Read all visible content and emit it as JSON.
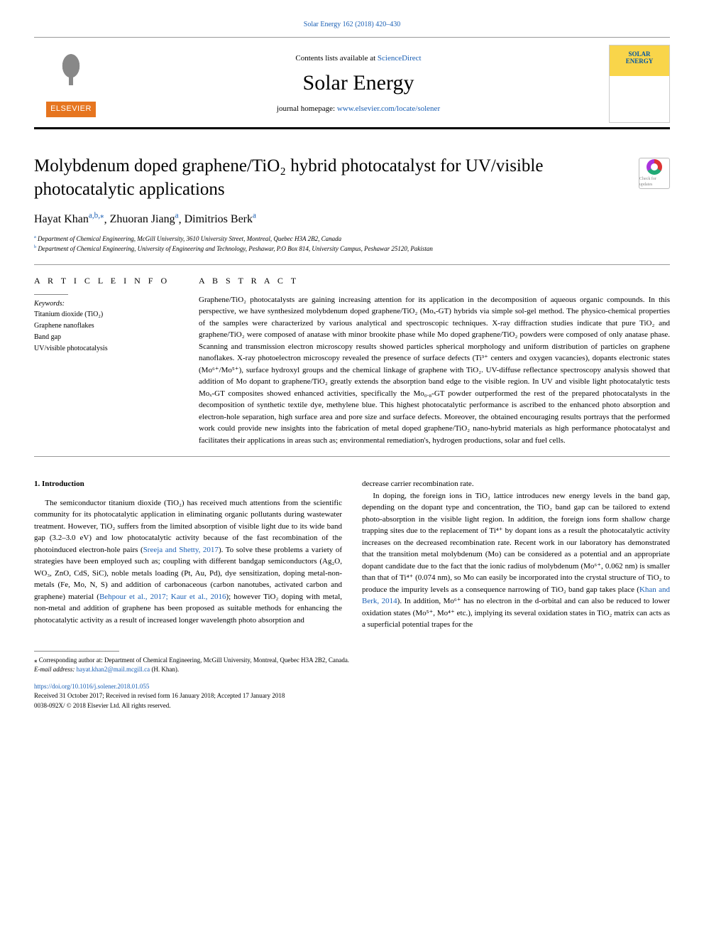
{
  "top_link": {
    "text": "Solar Energy 162 (2018) 420–430"
  },
  "header": {
    "contents_prefix": "Contents lists available at ",
    "contents_link": "ScienceDirect",
    "journal": "Solar Energy",
    "homepage_prefix": "journal homepage: ",
    "homepage_url": "www.elsevier.com/locate/solener",
    "elsevier": "ELSEVIER",
    "cover_line1": "SOLAR",
    "cover_line2": "ENERGY"
  },
  "article": {
    "title": "Molybdenum doped graphene/TiO₂ hybrid photocatalyst for UV/visible photocatalytic applications",
    "check_updates": "Check for updates",
    "authors_html": "Hayat Khan|a,b,*|, Zhuoran Jiang|a|, Dimitrios Berk|a|",
    "authors": [
      {
        "name": "Hayat Khan",
        "sup": "a,b,⁎"
      },
      {
        "name": "Zhuoran Jiang",
        "sup": "a"
      },
      {
        "name": "Dimitrios Berk",
        "sup": "a"
      }
    ],
    "affiliations": [
      {
        "sup": "a",
        "text": "Department of Chemical Engineering, McGill University, 3610 University Street, Montreal, Quebec H3A 2B2, Canada"
      },
      {
        "sup": "b",
        "text": "Department of Chemical Engineering, University of Engineering and Technology, Peshawar, P.O Box 814, University Campus, Peshawar 25120, Pakistan"
      }
    ]
  },
  "info": {
    "head_left": "A R T I C L E  I N F O",
    "head_right": "A B S T R A C T",
    "keywords_label": "Keywords:",
    "keywords": [
      "Titanium dioxide (TiO₂)",
      "Graphene nanoflakes",
      "Band gap",
      "UV/visible photocatalysis"
    ],
    "abstract": "Graphene/TiO₂ photocatalysts are gaining increasing attention for its application in the decomposition of aqueous organic compounds. In this perspective, we have synthesized molybdenum doped graphene/TiO₂ (Moₓ-GT) hybrids via simple sol-gel method. The physico-chemical properties of the samples were characterized by various analytical and spectroscopic techniques. X-ray diffraction studies indicate that pure TiO₂ and graphene/TiO₂ were composed of anatase with minor brookite phase while Mo doped graphene/TiO₂ powders were composed of only anatase phase. Scanning and transmission electron microscopy results showed particles spherical morphology and uniform distribution of particles on graphene nanoflakes. X-ray photoelectron microscopy revealed the presence of surface defects (Ti³⁺ centers and oxygen vacancies), dopants electronic states (Mo⁶⁺/Mo⁵⁺), surface hydroxyl groups and the chemical linkage of graphene with TiO₂. UV-diffuse reflectance spectroscopy analysis showed that addition of Mo dopant to graphene/TiO₂ greatly extends the absorption band edge to the visible region. In UV and visible light photocatalytic tests Moₓ-GT composites showed enhanced activities, specifically the Mo₀.₈-GT powder outperformed the rest of the prepared photocatalysts in the decomposition of synthetic textile dye, methylene blue. This highest photocatalytic performance is ascribed to the enhanced photo absorption and electron-hole separation, high surface area and pore size and surface defects. Moreover, the obtained encouraging results portrays that the performed work could provide new insights into the fabrication of metal doped graphene/TiO₂ nano-hybrid materials as high performance photocatalyst and facilitates their applications in areas such as; environmental remediation's, hydrogen productions, solar and fuel cells."
  },
  "body": {
    "intro_head": "1. Introduction",
    "col1_p1": "The semiconductor titanium dioxide (TiO₂) has received much attentions from the scientific community for its photocatalytic application in eliminating organic pollutants during wastewater treatment. However, TiO₂ suffers from the limited absorption of visible light due to its wide band gap (3.2–3.0 eV) and low photocatalytic activity because of the fast recombination of the photoinduced electron-hole pairs (",
    "col1_ref1": "Sreeja and Shetty, 2017",
    "col1_p1b": "). To solve these problems a variety of strategies have been employed such as; coupling with different bandgap semiconductors (Ag₂O, WO₃, ZnO, CdS, SiC), noble metals loading (Pt, Au, Pd), dye sensitization, doping metal-non-metals (Fe, Mo, N, S) and addition of carbonaceous (carbon nanotubes, activated carbon and graphene) material (",
    "col1_ref2": "Behpour et al., 2017; Kaur et al., 2016",
    "col1_p1c": "); however TiO₂ doping with metal, non-metal and addition of graphene has been proposed as suitable methods for enhancing the photocatalytic activity as a result of increased longer wavelength photo absorption and",
    "col2_p0": "decrease carrier recombination rate.",
    "col2_p1": "In doping, the foreign ions in TiO₂ lattice introduces new energy levels in the band gap, depending on the dopant type and concentration, the TiO₂ band gap can be tailored to extend photo-absorption in the visible light region. In addition, the foreign ions form shallow charge trapping sites due to the replacement of Ti⁴⁺ by dopant ions as a result the photocatalytic activity increases on the decreased recombination rate. Recent work in our laboratory has demonstrated that the transition metal molybdenum (Mo) can be considered as a potential and an appropriate dopant candidate due to the fact that the ionic radius of molybdenum (Mo⁶⁺, 0.062 nm) is smaller than that of Ti⁴⁺ (0.074 nm), so Mo can easily be incorporated into the crystal structure of TiO₂ to produce the impurity levels as a consequence narrowing of TiO₂ band gap takes place (",
    "col2_ref1": "Khan and Berk, 2014",
    "col2_p1b": "). In addition, Mo⁶⁺ has no electron in the d-orbital and can also be reduced to lower oxidation states (Mo⁵⁺, Mo⁴⁺ etc.), implying its several oxidation states in TiO₂ matrix can acts as a superficial potential trapes for the"
  },
  "footnotes": {
    "corr": "⁎ Corresponding author at: Department of Chemical Engineering, McGill University, Montreal, Quebec H3A 2B2, Canada.",
    "email_label": "E-mail address: ",
    "email": "hayat.khan2@mail.mcgill.ca",
    "email_suffix": " (H. Khan)."
  },
  "doi": {
    "url": "https://doi.org/10.1016/j.solener.2018.01.055",
    "received": "Received 31 October 2017; Received in revised form 16 January 2018; Accepted 17 January 2018",
    "issn": "0038-092X/ © 2018 Elsevier Ltd. All rights reserved."
  },
  "colors": {
    "link": "#1a5fb4",
    "elsevier_orange": "#e6751f",
    "rule_dark": "#000000"
  }
}
